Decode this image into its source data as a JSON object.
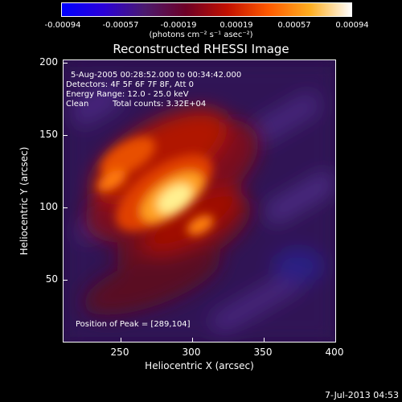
{
  "colorbar": {
    "tick_labels": [
      "-0.00094",
      "-0.00057",
      "-0.00019",
      "0.00019",
      "0.00057",
      "0.00094"
    ],
    "units": "(photons cm⁻² s⁻¹ asec⁻²)",
    "colors": [
      "#0000ff",
      "#2a00d8",
      "#4b1a6e",
      "#6d0026",
      "#c21000",
      "#ff5a00",
      "#ffae20",
      "#ffffff"
    ]
  },
  "title": "Reconstructed RHESSI Image",
  "info": {
    "line1": "5-Aug-2005 00:28:52.000 to 00:34:42.000",
    "line2": "Detectors: 4F 5F 6F 7F 8F, Att 0",
    "line3": "Energy Range: 12.0 - 25.0 keV",
    "line4_a": "Clean",
    "line4_b": "Total counts: 3.32E+04",
    "peak": "Position of Peak = [289,104]"
  },
  "axes": {
    "xlabel": "Heliocentric X (arcsec)",
    "ylabel": "Heliocentric Y (arcsec)",
    "xticks": [
      "250",
      "300",
      "350",
      "400"
    ],
    "yticks": [
      "200",
      "150",
      "100",
      "50"
    ],
    "xrange": [
      210,
      400
    ],
    "yrange": [
      5,
      202
    ]
  },
  "peak": {
    "x": 289,
    "y": 104
  },
  "footer": "7-Jul-2013 04:53"
}
